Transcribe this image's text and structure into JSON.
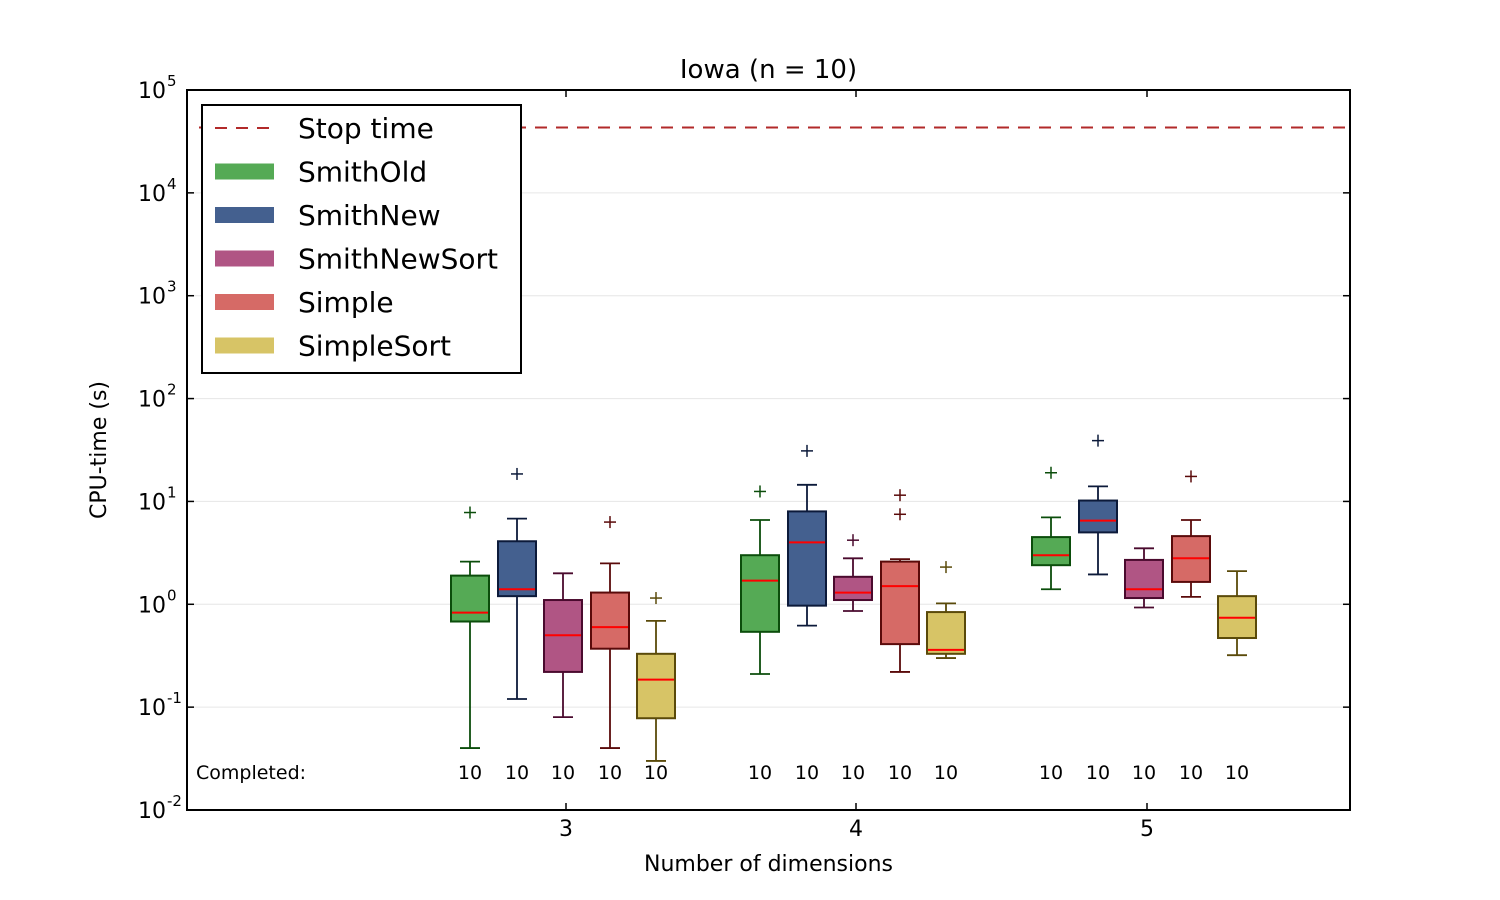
{
  "chart_data": {
    "type": "boxplot",
    "title": "Iowa (n = 10)",
    "xlabel": "Number of dimensions",
    "ylabel": "CPU-time (s)",
    "yscale": "log",
    "ylim": [
      0.01,
      100000
    ],
    "y_ticks": [
      {
        "base": "10",
        "exp": "-2"
      },
      {
        "base": "10",
        "exp": "-1"
      },
      {
        "base": "10",
        "exp": "0"
      },
      {
        "base": "10",
        "exp": "1"
      },
      {
        "base": "10",
        "exp": "2"
      },
      {
        "base": "10",
        "exp": "3"
      },
      {
        "base": "10",
        "exp": "4"
      },
      {
        "base": "10",
        "exp": "5"
      }
    ],
    "categories": [
      "3",
      "4",
      "5"
    ],
    "grid": "horizontal",
    "legend_position": "top-left",
    "stop_time": {
      "name": "Stop time",
      "value": 43200,
      "color": "#b22a2a"
    },
    "completed_label": "Completed:",
    "series": [
      {
        "name": "SmithOld",
        "color": "#55aa55",
        "edge": "#0b4d0b",
        "boxes": [
          {
            "whislo": 0.04,
            "q1": 0.68,
            "med": 0.83,
            "q3": 1.9,
            "whishi": 2.6,
            "fliers": [
              7.8
            ],
            "completed": "10"
          },
          {
            "whislo": 0.21,
            "q1": 0.54,
            "med": 1.7,
            "q3": 3.0,
            "whishi": 6.6,
            "fliers": [
              12.5
            ],
            "completed": "10"
          },
          {
            "whislo": 1.4,
            "q1": 2.4,
            "med": 3.0,
            "q3": 4.5,
            "whishi": 7.0,
            "fliers": [
              19
            ],
            "completed": "10"
          }
        ]
      },
      {
        "name": "SmithNew",
        "color": "#44608f",
        "edge": "#0c1a3a",
        "boxes": [
          {
            "whislo": 0.12,
            "q1": 1.2,
            "med": 1.4,
            "q3": 4.1,
            "whishi": 6.8,
            "fliers": [
              18.5
            ],
            "completed": "10"
          },
          {
            "whislo": 0.62,
            "q1": 0.97,
            "med": 4.0,
            "q3": 8.0,
            "whishi": 14.5,
            "fliers": [
              31
            ],
            "completed": "10"
          },
          {
            "whislo": 1.95,
            "q1": 5.0,
            "med": 6.5,
            "q3": 10.2,
            "whishi": 14.0,
            "fliers": [
              39
            ],
            "completed": "10"
          }
        ]
      },
      {
        "name": "SmithNewSort",
        "color": "#b05584",
        "edge": "#4a0a2e",
        "boxes": [
          {
            "whislo": 0.08,
            "q1": 0.22,
            "med": 0.5,
            "q3": 1.1,
            "whishi": 2.0,
            "fliers": [],
            "completed": "10"
          },
          {
            "whislo": 0.86,
            "q1": 1.1,
            "med": 1.3,
            "q3": 1.85,
            "whishi": 2.8,
            "fliers": [
              4.2
            ],
            "completed": "10"
          },
          {
            "whislo": 0.93,
            "q1": 1.15,
            "med": 1.4,
            "q3": 2.7,
            "whishi": 3.5,
            "fliers": [],
            "completed": "10"
          }
        ]
      },
      {
        "name": "Simple",
        "color": "#d66a66",
        "edge": "#5a0a0a",
        "boxes": [
          {
            "whislo": 0.04,
            "q1": 0.37,
            "med": 0.6,
            "q3": 1.3,
            "whishi": 2.5,
            "fliers": [
              6.3
            ],
            "completed": "10"
          },
          {
            "whislo": 0.22,
            "q1": 0.41,
            "med": 1.5,
            "q3": 2.6,
            "whishi": 2.75,
            "fliers": [
              7.5,
              11.5
            ],
            "completed": "10"
          },
          {
            "whislo": 1.18,
            "q1": 1.65,
            "med": 2.8,
            "q3": 4.6,
            "whishi": 6.6,
            "fliers": [
              17.5
            ],
            "completed": "10"
          }
        ]
      },
      {
        "name": "SimpleSort",
        "color": "#d7c466",
        "edge": "#5a4a0a",
        "boxes": [
          {
            "whislo": 0.03,
            "q1": 0.078,
            "med": 0.185,
            "q3": 0.33,
            "whishi": 0.69,
            "fliers": [
              1.15
            ],
            "completed": "10"
          },
          {
            "whislo": 0.3,
            "q1": 0.33,
            "med": 0.36,
            "q3": 0.84,
            "whishi": 1.02,
            "fliers": [
              2.3
            ],
            "completed": "10"
          },
          {
            "whislo": 0.32,
            "q1": 0.47,
            "med": 0.74,
            "q3": 1.2,
            "whishi": 2.1,
            "fliers": [],
            "completed": "10"
          }
        ]
      }
    ]
  }
}
